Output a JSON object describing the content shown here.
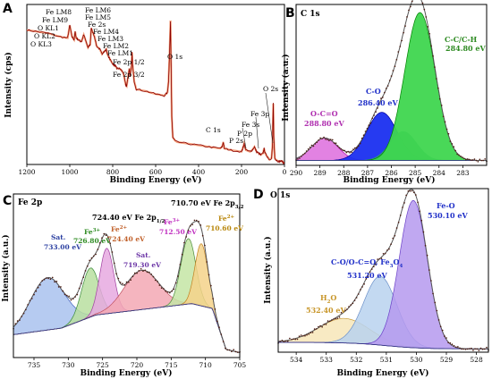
{
  "panels": [
    {
      "id": "A",
      "label": "A",
      "type": "line",
      "xlabel": "Binding Energy (eV)",
      "ylabel": "Intensity (cps)",
      "xlim": [
        1200,
        0
      ],
      "xticks": [
        1200,
        1000,
        800,
        600,
        400,
        200,
        0
      ],
      "colors": {
        "raw": "#8b0000",
        "fit": "#f4a582"
      },
      "chart_data": {
        "type": "line",
        "x": [
          1200,
          1150,
          1100,
          1050,
          1010,
          1000,
          990,
          980,
          975,
          970,
          960,
          950,
          945,
          935,
          915,
          905,
          900,
          885,
          875,
          860,
          850,
          845,
          835,
          830,
          825,
          810,
          800,
          795,
          790,
          785,
          780,
          770,
          760,
          750,
          740,
          735,
          725,
          722,
          720,
          712,
          710,
          708,
          700,
          690,
          650,
          600,
          560,
          545,
          540,
          535,
          531,
          528,
          525,
          520,
          510,
          500,
          450,
          400,
          350,
          300,
          290,
          285,
          280,
          250,
          200,
          192,
          188,
          180,
          160,
          150,
          140,
          130,
          120,
          110,
          100,
          95,
          90,
          80,
          70,
          60,
          56,
          52,
          50,
          45,
          40,
          30,
          20,
          10,
          5,
          0
        ],
        "y": [
          0.84,
          0.83,
          0.82,
          0.8,
          0.79,
          0.87,
          0.8,
          0.78,
          0.83,
          0.79,
          0.78,
          0.77,
          0.77,
          0.81,
          0.73,
          0.75,
          0.85,
          0.8,
          0.74,
          0.72,
          0.69,
          0.7,
          0.71,
          0.72,
          0.69,
          0.65,
          0.63,
          0.62,
          0.62,
          0.61,
          0.6,
          0.6,
          0.59,
          0.57,
          0.5,
          0.49,
          0.58,
          0.6,
          0.55,
          0.62,
          0.7,
          0.63,
          0.52,
          0.47,
          0.46,
          0.44,
          0.43,
          0.45,
          0.52,
          0.7,
          0.9,
          0.62,
          0.3,
          0.17,
          0.15,
          0.14,
          0.13,
          0.12,
          0.11,
          0.1,
          0.11,
          0.14,
          0.1,
          0.09,
          0.08,
          0.11,
          0.13,
          0.09,
          0.08,
          0.09,
          0.11,
          0.08,
          0.07,
          0.06,
          0.07,
          0.1,
          0.07,
          0.05,
          0.03,
          0.04,
          0.12,
          0.38,
          0.18,
          0.04,
          0.03,
          0.02,
          0.02,
          0.02,
          0.01,
          0.01
        ]
      },
      "annotations": [
        {
          "text": "Fe LM8"
        },
        {
          "text": "Fe LM9"
        },
        {
          "text": "O KL1"
        },
        {
          "text": "O KL2"
        },
        {
          "text": "O KL3"
        },
        {
          "text": "Fe LM6"
        },
        {
          "text": "Fe LM5"
        },
        {
          "text": "Fe 2s"
        },
        {
          "text": "Fe LM4"
        },
        {
          "text": "Fe LM3"
        },
        {
          "text": "Fe LM2"
        },
        {
          "text": "Fe LM1"
        },
        {
          "text": "Fe 2p 1/2"
        },
        {
          "text": "Fe 2p 3/2"
        },
        {
          "text": "O 1s"
        },
        {
          "text": "C 1s"
        },
        {
          "text": "P 2s"
        },
        {
          "text": "P 2p"
        },
        {
          "text": "Fe 3s"
        },
        {
          "text": "Fe 3p"
        },
        {
          "text": "O 2s"
        }
      ]
    },
    {
      "id": "B",
      "label": "B",
      "title": "C 1s",
      "type": "area",
      "xlabel": "Binding Energy (eV)",
      "ylabel": "Intensity (a.u.)",
      "xlim": [
        290,
        282
      ],
      "xticks": [
        290,
        289,
        288,
        287,
        286,
        285,
        284,
        283
      ],
      "chart_data": {
        "type": "area",
        "peaks": [
          {
            "name": "O-C=O",
            "center": 288.8,
            "height": 0.14,
            "fwhm": 1.3,
            "fill": "#e07be0",
            "stroke": "#b000b0"
          },
          {
            "name": "C-O",
            "center": 286.4,
            "height": 0.3,
            "fwhm": 1.5,
            "fill": "#1a2ff0",
            "stroke": "#0000a0"
          },
          {
            "name": "C-C/C-H",
            "center": 284.8,
            "height": 0.92,
            "fwhm": 1.5,
            "fill": "#3fd64f",
            "stroke": "#008000"
          }
        ],
        "shoulder": {
          "name": "",
          "center": 285.5,
          "height": 0.18,
          "fwhm": 1.3,
          "fill": "#2e9a7a"
        },
        "background": 0.03
      },
      "annotations": [
        {
          "text": "C-C/C-H",
          "value": "284.80 eV",
          "color": "#2e8b22"
        },
        {
          "text": "C-O",
          "value": "286.40 eV",
          "color": "#1f2fc8"
        },
        {
          "text": "O-C=O",
          "value": "288.80 eV",
          "color": "#b030b0"
        }
      ]
    },
    {
      "id": "C",
      "label": "C",
      "title": "Fe 2p",
      "type": "area",
      "xlabel": "Binding Energy (eV)",
      "ylabel": "Intensity (a.u.)",
      "xlim": [
        738,
        705
      ],
      "xticks": [
        735,
        730,
        725,
        720,
        715,
        710,
        705
      ],
      "chart_data": {
        "type": "area",
        "peaks": [
          {
            "name": "Sat.",
            "center": 733.0,
            "height": 0.32,
            "fwhm": 6.0,
            "fill": "#a9c2ee",
            "stroke": "#4060c0"
          },
          {
            "name": "Fe3+",
            "center": 726.8,
            "height": 0.3,
            "fwhm": 3.0,
            "fill": "#b9dfa0",
            "stroke": "#3a8a3a"
          },
          {
            "name": "Fe2+",
            "center": 724.4,
            "height": 0.4,
            "fwhm": 2.4,
            "fill": "#e6a9e0",
            "stroke": "#a040a0"
          },
          {
            "name": "Sat.",
            "center": 719.3,
            "height": 0.24,
            "fwhm": 6.0,
            "fill": "#f3a8b4",
            "stroke": "#c05060"
          },
          {
            "name": "Fe3+",
            "center": 712.5,
            "height": 0.4,
            "fwhm": 2.6,
            "fill": "#c4e5a4",
            "stroke": "#4a8a3a"
          },
          {
            "name": "Fe2+",
            "center": 710.6,
            "height": 0.38,
            "fwhm": 2.2,
            "fill": "#f5d28a",
            "stroke": "#c08020"
          }
        ],
        "baseline": [
          [
            738,
            0.14
          ],
          [
            731,
            0.18
          ],
          [
            726,
            0.26
          ],
          [
            718,
            0.3
          ],
          [
            712,
            0.33
          ],
          [
            709,
            0.3
          ],
          [
            707,
            0.05
          ],
          [
            705,
            0.03
          ]
        ]
      },
      "annotations": [
        {
          "text": "724.40 eV Fe 2p",
          "sub": "1/2",
          "color": "#000000"
        },
        {
          "text": "710.70 eV Fe 2p",
          "sub": "3/2",
          "color": "#000000"
        },
        {
          "text": "Sat.",
          "value": "733.00 eV",
          "color": "#2a3ea0"
        },
        {
          "text": "Fe",
          "sup": "3+",
          "value": "726.80 eV",
          "color": "#2e8b22"
        },
        {
          "text": "Fe",
          "sup": "2+",
          "value": "724.40 eV",
          "color": "#c0602a"
        },
        {
          "text": "Sat.",
          "value": "719.30 eV",
          "color": "#6b35a6"
        },
        {
          "text": "Fe",
          "sup": "3+",
          "value": "712.50 eV",
          "color": "#c030c0"
        },
        {
          "text": "Fe",
          "sup": "2+",
          "value": "710.60 eV",
          "color": "#b8860b"
        }
      ]
    },
    {
      "id": "D",
      "label": "D",
      "title": "O 1s",
      "type": "area",
      "xlabel": "Binding Energy (eV)",
      "ylabel": "Intensity (a.u.)",
      "xlim": [
        534.6,
        527.6
      ],
      "xticks": [
        534,
        533,
        532,
        531,
        530,
        529,
        528
      ],
      "chart_data": {
        "type": "area",
        "peaks": [
          {
            "name": "H2O",
            "center": 532.4,
            "height": 0.15,
            "fwhm": 2.0,
            "fill": "#f7e6b8",
            "stroke": "#c89b3a"
          },
          {
            "name": "C-O/O-C=O, Fe3O4",
            "center": 531.2,
            "height": 0.42,
            "fwhm": 1.3,
            "fill": "#b9d2ee",
            "stroke": "#6a8fc8"
          },
          {
            "name": "Fe-O",
            "center": 530.1,
            "height": 0.9,
            "fwhm": 1.1,
            "fill": "#b599ee",
            "stroke": "#6a40c8"
          }
        ],
        "baseline_left": 0.02,
        "baseline_right": 0.06
      },
      "annotations": [
        {
          "text": "Fe-O",
          "value": "530.10 eV",
          "color": "#1f2fc8"
        },
        {
          "text": "C-O/O-C=O, Fe",
          "sub": "3",
          "text2": "O",
          "sub2": "4",
          "value": "531.20 eV",
          "color": "#1f2fc8"
        },
        {
          "text": "H",
          "sub": "2",
          "text2": "O",
          "value": "532.40 eV",
          "color": "#c8962a"
        }
      ]
    }
  ]
}
